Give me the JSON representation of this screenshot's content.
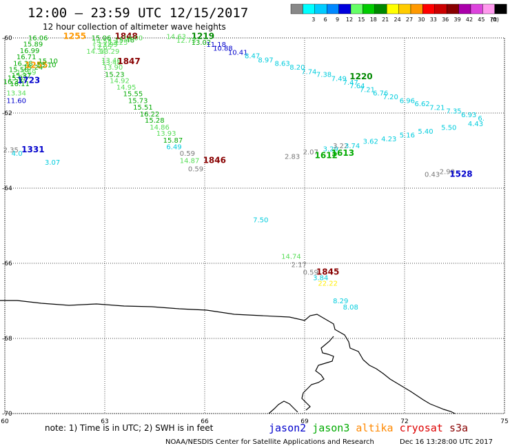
{
  "header": {
    "title": "12:00 – 23:59 UTC 12/15/2017",
    "subtitle": "12 hour collection of altimeter wave heights"
  },
  "legend": {
    "unit": "(ft)",
    "bins": [
      {
        "label": "",
        "color": "#888888"
      },
      {
        "label": "3",
        "color": "#00ffff"
      },
      {
        "label": "6",
        "color": "#00ccff"
      },
      {
        "label": "9",
        "color": "#0088ff"
      },
      {
        "label": "12",
        "color": "#0000dd"
      },
      {
        "label": "15",
        "color": "#66ff66"
      },
      {
        "label": "18",
        "color": "#00cc00"
      },
      {
        "label": "21",
        "color": "#008800"
      },
      {
        "label": "24",
        "color": "#ffff00"
      },
      {
        "label": "27",
        "color": "#ffcc00"
      },
      {
        "label": "30",
        "color": "#ff9900"
      },
      {
        "label": "33",
        "color": "#ff0000"
      },
      {
        "label": "36",
        "color": "#cc0000"
      },
      {
        "label": "39",
        "color": "#880000"
      },
      {
        "label": "42",
        "color": "#aa00aa"
      },
      {
        "label": "45",
        "color": "#dd44dd"
      },
      {
        "label": "70",
        "color": "#ff99ee"
      },
      {
        "label": "",
        "color": "#000000"
      }
    ]
  },
  "axes": {
    "lon_ticks": [
      "60",
      "63",
      "66",
      "69",
      "72",
      "75"
    ],
    "lat_ticks": [
      "-60",
      "-62",
      "-64",
      "-66",
      "-68",
      "-70"
    ]
  },
  "footer": {
    "note": "note: 1) Time is in UTC; 2) SWH is in feet",
    "satellites": [
      {
        "name": "jason2",
        "color": "#0000cc"
      },
      {
        "name": "jason3",
        "color": "#00aa00"
      },
      {
        "name": "altika",
        "color": "#ff8800"
      },
      {
        "name": "cryosat",
        "color": "#dd0000"
      },
      {
        "name": "s3a",
        "color": "#880000"
      }
    ],
    "credit": "NOAA/NESDIS Center for Satellite Applications and Research",
    "generated": "Dec 16 13:28:00 UTC 2017"
  },
  "colors": {
    "gray": "#777777",
    "cyan": "#00ccdd",
    "blue": "#0000cc",
    "lgreen": "#55dd55",
    "green": "#00aa00",
    "dgreen": "#008800",
    "yellow": "#ffee00",
    "orange": "#ff9900",
    "dred": "#880000"
  },
  "observations": [
    {
      "text": "16.06",
      "lon": 60.7,
      "lat": -60.06,
      "c": "green"
    },
    {
      "text": "15.89",
      "lon": 60.55,
      "lat": -60.23,
      "c": "green"
    },
    {
      "text": "16.99",
      "lon": 60.45,
      "lat": -60.4,
      "c": "green"
    },
    {
      "text": "16.71",
      "lon": 60.35,
      "lat": -60.57,
      "c": "green"
    },
    {
      "text": "16.28",
      "lon": 60.25,
      "lat": -60.74,
      "c": "green"
    },
    {
      "text": "15.50",
      "lon": 60.12,
      "lat": -60.91,
      "c": "green"
    },
    {
      "text": "15.24",
      "lon": 60.55,
      "lat": -60.84,
      "c": "green"
    },
    {
      "text": "15.69",
      "lon": 60.35,
      "lat": -60.98,
      "c": "lgreen"
    },
    {
      "text": "15.37",
      "lon": 60.2,
      "lat": -61.06,
      "c": "green"
    },
    {
      "text": "15.02",
      "lon": 60.08,
      "lat": -61.13,
      "c": "green"
    },
    {
      "text": "16.37",
      "lon": 59.95,
      "lat": -61.23,
      "c": "green"
    },
    {
      "text": "16.11",
      "lon": 60.15,
      "lat": -61.28,
      "c": "green"
    },
    {
      "text": "13.34",
      "lon": 60.05,
      "lat": -61.53,
      "c": "lgreen"
    },
    {
      "text": "11.60",
      "lon": 60.05,
      "lat": -61.73,
      "c": "blue"
    },
    {
      "text": "1723",
      "lon": 60.37,
      "lat": -61.2,
      "c": "blue",
      "time": true
    },
    {
      "text": "1255",
      "lon": 60.6,
      "lat": -60.8,
      "c": "orange",
      "time": true
    },
    {
      "text": "15.10",
      "lon": 60.95,
      "lat": -60.78,
      "c": "green"
    },
    {
      "text": "15.10",
      "lon": 61.0,
      "lat": -60.68,
      "c": "green"
    },
    {
      "text": "1255",
      "lon": 61.75,
      "lat": -60.03,
      "c": "orange",
      "time": true
    },
    {
      "text": "15.06",
      "lon": 62.6,
      "lat": -60.06,
      "c": "green"
    },
    {
      "text": "1848",
      "lon": 63.3,
      "lat": -60.03,
      "c": "dred",
      "time": true
    },
    {
      "text": "14.00",
      "lon": 63.55,
      "lat": -60.06,
      "c": "lgreen"
    },
    {
      "text": "15.48",
      "lon": 63.3,
      "lat": -60.12,
      "c": "green"
    },
    {
      "text": "14.58",
      "lon": 62.62,
      "lat": -60.16,
      "c": "lgreen"
    },
    {
      "text": "13.25",
      "lon": 63.1,
      "lat": -60.18,
      "c": "lgreen"
    },
    {
      "text": "13.99",
      "lon": 62.8,
      "lat": -60.24,
      "c": "lgreen"
    },
    {
      "text": "13.65",
      "lon": 62.62,
      "lat": -60.3,
      "c": "lgreen"
    },
    {
      "text": "14.34",
      "lon": 62.45,
      "lat": -60.42,
      "c": "lgreen"
    },
    {
      "text": "13.29",
      "lon": 62.85,
      "lat": -60.42,
      "c": "lgreen"
    },
    {
      "text": "13.40",
      "lon": 62.9,
      "lat": -60.66,
      "c": "lgreen"
    },
    {
      "text": "13.48",
      "lon": 62.9,
      "lat": -60.72,
      "c": "lgreen"
    },
    {
      "text": "1847",
      "lon": 63.38,
      "lat": -60.7,
      "c": "dred",
      "time": true
    },
    {
      "text": "13.90",
      "lon": 62.95,
      "lat": -60.84,
      "c": "lgreen"
    },
    {
      "text": "15.23",
      "lon": 63.0,
      "lat": -61.04,
      "c": "green"
    },
    {
      "text": "14.92",
      "lon": 63.15,
      "lat": -61.2,
      "c": "lgreen"
    },
    {
      "text": "14.95",
      "lon": 63.35,
      "lat": -61.38,
      "c": "lgreen"
    },
    {
      "text": "15.55",
      "lon": 63.55,
      "lat": -61.55,
      "c": "green"
    },
    {
      "text": "15.73",
      "lon": 63.7,
      "lat": -61.73,
      "c": "green"
    },
    {
      "text": "15.51",
      "lon": 63.85,
      "lat": -61.91,
      "c": "green"
    },
    {
      "text": "16.22",
      "lon": 64.05,
      "lat": -62.09,
      "c": "green"
    },
    {
      "text": "15.28",
      "lon": 64.2,
      "lat": -62.26,
      "c": "green"
    },
    {
      "text": "14.86",
      "lon": 64.35,
      "lat": -62.44,
      "c": "lgreen"
    },
    {
      "text": "13.93",
      "lon": 64.55,
      "lat": -62.61,
      "c": "lgreen"
    },
    {
      "text": "15.87",
      "lon": 64.75,
      "lat": -62.79,
      "c": "green"
    },
    {
      "text": "6.49",
      "lon": 64.85,
      "lat": -62.96,
      "c": "cyan"
    },
    {
      "text": "0.59",
      "lon": 65.25,
      "lat": -63.14,
      "c": "gray"
    },
    {
      "text": "14.87",
      "lon": 65.25,
      "lat": -63.33,
      "c": "lgreen"
    },
    {
      "text": "1846",
      "lon": 65.95,
      "lat": -63.33,
      "c": "dred",
      "time": true
    },
    {
      "text": "0.59",
      "lon": 65.5,
      "lat": -63.55,
      "c": "gray"
    },
    {
      "text": "14.63",
      "lon": 64.85,
      "lat": -60.03,
      "c": "lgreen"
    },
    {
      "text": "1219",
      "lon": 65.6,
      "lat": -60.03,
      "c": "dgreen",
      "time": true
    },
    {
      "text": "12.73",
      "lon": 65.15,
      "lat": -60.13,
      "c": "lgreen"
    },
    {
      "text": "13.02",
      "lon": 65.6,
      "lat": -60.18,
      "c": "green"
    },
    {
      "text": "11.18",
      "lon": 66.05,
      "lat": -60.24,
      "c": "blue"
    },
    {
      "text": "10.88",
      "lon": 66.25,
      "lat": -60.34,
      "c": "blue"
    },
    {
      "text": "10.41",
      "lon": 66.7,
      "lat": -60.45,
      "c": "blue"
    },
    {
      "text": "8.47",
      "lon": 67.2,
      "lat": -60.54,
      "c": "cyan"
    },
    {
      "text": "8.97",
      "lon": 67.6,
      "lat": -60.65,
      "c": "cyan"
    },
    {
      "text": "8.63",
      "lon": 68.1,
      "lat": -60.74,
      "c": "cyan"
    },
    {
      "text": "8.20",
      "lon": 68.55,
      "lat": -60.84,
      "c": "cyan"
    },
    {
      "text": "7.74",
      "lon": 68.9,
      "lat": -60.96,
      "c": "cyan"
    },
    {
      "text": "7.38",
      "lon": 69.35,
      "lat": -61.04,
      "c": "cyan"
    },
    {
      "text": "7.49",
      "lon": 69.8,
      "lat": -61.15,
      "c": "cyan"
    },
    {
      "text": "1220",
      "lon": 70.35,
      "lat": -61.1,
      "c": "dgreen",
      "time": true
    },
    {
      "text": "7.47",
      "lon": 70.15,
      "lat": -61.25,
      "c": "cyan"
    },
    {
      "text": "7.64",
      "lon": 70.35,
      "lat": -61.34,
      "c": "cyan"
    },
    {
      "text": "7.21",
      "lon": 70.65,
      "lat": -61.44,
      "c": "cyan"
    },
    {
      "text": "6.76",
      "lon": 71.05,
      "lat": -61.53,
      "c": "cyan"
    },
    {
      "text": "7.20",
      "lon": 71.35,
      "lat": -61.63,
      "c": "cyan"
    },
    {
      "text": "6.96",
      "lon": 71.85,
      "lat": -61.73,
      "c": "cyan"
    },
    {
      "text": "6.62",
      "lon": 72.3,
      "lat": -61.82,
      "c": "cyan"
    },
    {
      "text": "7.21",
      "lon": 72.75,
      "lat": -61.92,
      "c": "cyan"
    },
    {
      "text": "7.35",
      "lon": 73.25,
      "lat": -62.01,
      "c": "cyan"
    },
    {
      "text": "6.93",
      "lon": 73.7,
      "lat": -62.11,
      "c": "cyan"
    },
    {
      "text": "6.",
      "lon": 74.2,
      "lat": -62.2,
      "c": "cyan"
    },
    {
      "text": "2.35",
      "lon": 59.95,
      "lat": -63.05,
      "c": "gray"
    },
    {
      "text": "4.0",
      "lon": 60.2,
      "lat": -63.14,
      "c": "cyan"
    },
    {
      "text": "1331",
      "lon": 60.5,
      "lat": -63.05,
      "c": "blue",
      "time": true
    },
    {
      "text": "3.07",
      "lon": 61.2,
      "lat": -63.38,
      "c": "cyan"
    },
    {
      "text": "2.83",
      "lon": 68.4,
      "lat": -63.22,
      "c": "gray"
    },
    {
      "text": "2.07",
      "lon": 68.95,
      "lat": -63.1,
      "c": "gray"
    },
    {
      "text": "1612",
      "lon": 69.3,
      "lat": -63.2,
      "c": "green",
      "time": true
    },
    {
      "text": "3.29",
      "lon": 69.55,
      "lat": -63.02,
      "c": "cyan"
    },
    {
      "text": "1613",
      "lon": 69.8,
      "lat": -63.14,
      "c": "green",
      "time": true
    },
    {
      "text": "3.22",
      "lon": 69.85,
      "lat": -62.94,
      "c": "gray"
    },
    {
      "text": "3.74",
      "lon": 70.2,
      "lat": -62.94,
      "c": "cyan"
    },
    {
      "text": "3.62",
      "lon": 70.75,
      "lat": -62.82,
      "c": "cyan"
    },
    {
      "text": "4.23",
      "lon": 71.3,
      "lat": -62.75,
      "c": "cyan"
    },
    {
      "text": "5.16",
      "lon": 71.85,
      "lat": -62.65,
      "c": "cyan"
    },
    {
      "text": "5.40",
      "lon": 72.4,
      "lat": -62.55,
      "c": "cyan"
    },
    {
      "text": "5.50",
      "lon": 73.1,
      "lat": -62.45,
      "c": "cyan"
    },
    {
      "text": "4.43",
      "lon": 73.9,
      "lat": -62.35,
      "c": "cyan"
    },
    {
      "text": "0.43",
      "lon": 72.6,
      "lat": -63.7,
      "c": "gray"
    },
    {
      "text": "2.90",
      "lon": 73.05,
      "lat": -63.62,
      "c": "gray"
    },
    {
      "text": "1528",
      "lon": 73.35,
      "lat": -63.7,
      "c": "blue",
      "time": true
    },
    {
      "text": "7.50",
      "lon": 67.45,
      "lat": -64.91,
      "c": "cyan"
    },
    {
      "text": "14.74",
      "lon": 68.3,
      "lat": -65.88,
      "c": "lgreen"
    },
    {
      "text": "2.17",
      "lon": 68.6,
      "lat": -66.1,
      "c": "gray"
    },
    {
      "text": "0.59",
      "lon": 68.95,
      "lat": -66.3,
      "c": "gray"
    },
    {
      "text": "1845",
      "lon": 69.35,
      "lat": -66.3,
      "c": "dred",
      "time": true
    },
    {
      "text": "3.84",
      "lon": 69.25,
      "lat": -66.45,
      "c": "cyan"
    },
    {
      "text": "22.22",
      "lon": 69.4,
      "lat": -66.6,
      "c": "yellow"
    },
    {
      "text": "8.29",
      "lon": 69.85,
      "lat": -67.06,
      "c": "cyan"
    },
    {
      "text": "8.08",
      "lon": 70.15,
      "lat": -67.23,
      "c": "cyan"
    }
  ]
}
